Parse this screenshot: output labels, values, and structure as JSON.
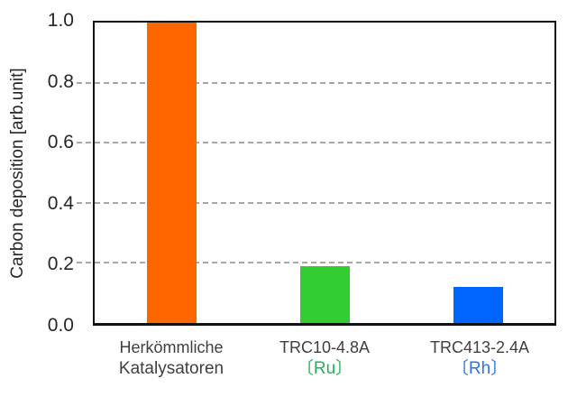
{
  "chart_data": {
    "type": "bar",
    "title": "",
    "xlabel": "",
    "ylabel": "Carbon deposition [arb.unit]",
    "ylim": [
      0.0,
      1.0
    ],
    "ytick_labels": [
      "1.0",
      "0.8",
      "0.6",
      "0.4",
      "0.2",
      "0.0"
    ],
    "grid": "horizontal-dashed-gray",
    "legend": "none",
    "categories": [
      {
        "label_line1": "Herkömmliche",
        "label_line2": "Katalysatoren",
        "line2_color": "#3f3f3f"
      },
      {
        "label_line1": "TRC10-4.8A",
        "label_line2": "〔Ru〕",
        "line2_color": "#1eb45a"
      },
      {
        "label_line1": "TRC413-2.4A",
        "label_line2": "〔Rh〕",
        "line2_color": "#2873f0"
      }
    ],
    "values": [
      1.0,
      0.19,
      0.12
    ],
    "bar_colors": [
      "#ff6600",
      "#33cc33",
      "#0066ff"
    ],
    "axis_color": "#111111",
    "gridline_color": "#a6a6a6"
  }
}
